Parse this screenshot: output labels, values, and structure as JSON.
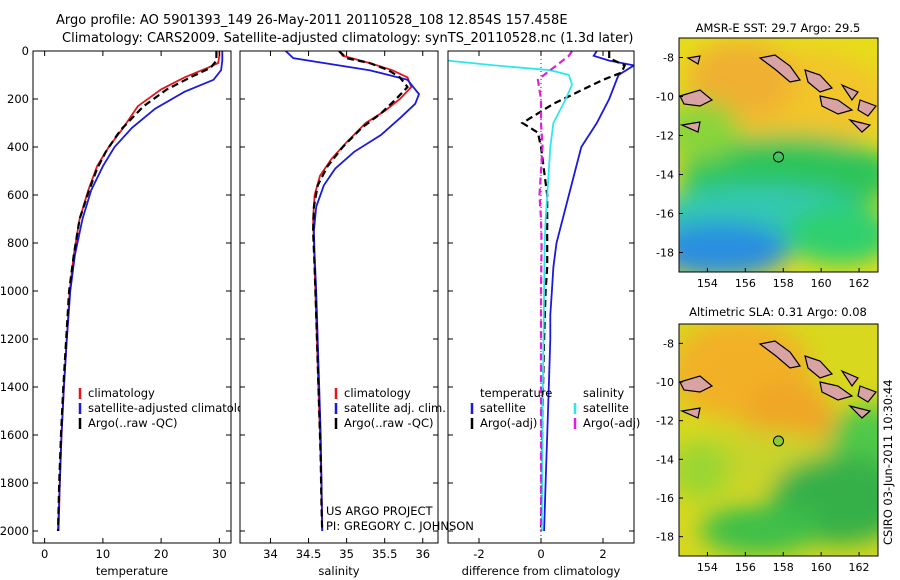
{
  "header": {
    "line1": "Argo profile: AO 5901393_149 26-May-2011 20110528_108 12.854S 157.458E",
    "line2": "Climatology: CARS2009. Satellite-adjusted climatology: synTS_20110528.nc (1.3d later)"
  },
  "side_stamp": "CSIRO 03-Jun-2011 10:30:44",
  "credits": {
    "line1": "US ARGO PROJECT",
    "line2": "PI: GREGORY C. JOHNSON"
  },
  "colors": {
    "climatology": "#e8141c",
    "satellite": "#1a1adc",
    "argo": "#000000",
    "sat_diff_sal": "#2ee8e8",
    "argo_diff_sal": "#e01ee0"
  },
  "chart_data": [
    {
      "type": "line",
      "id": "temperature",
      "xlabel": "temperature",
      "xlim": [
        -2,
        32
      ],
      "ylim": [
        0,
        2050
      ],
      "y_inverted": true,
      "xticks": [
        0,
        10,
        20,
        30
      ],
      "yticks": [
        0,
        200,
        400,
        600,
        800,
        1000,
        1200,
        1400,
        1600,
        1800,
        2000
      ],
      "legend": [
        "climatology",
        "satellite-adjusted climatology",
        "Argo(..raw -QC)"
      ],
      "series": [
        {
          "name": "climatology",
          "style": "solid",
          "color": "#e8141c",
          "points": [
            [
              30,
              0
            ],
            [
              30,
              20
            ],
            [
              29.8,
              50
            ],
            [
              28,
              70
            ],
            [
              24,
              110
            ],
            [
              20,
              160
            ],
            [
              16,
              230
            ],
            [
              13.5,
              320
            ],
            [
              11,
              400
            ],
            [
              9,
              480
            ],
            [
              7.5,
              580
            ],
            [
              6,
              700
            ],
            [
              5,
              850
            ],
            [
              4.3,
              1000
            ],
            [
              3.8,
              1200
            ],
            [
              3.3,
              1400
            ],
            [
              2.9,
              1600
            ],
            [
              2.6,
              1800
            ],
            [
              2.4,
              2000
            ]
          ]
        },
        {
          "name": "satellite-adjusted climatology",
          "style": "solid",
          "color": "#1a1adc",
          "points": [
            [
              30.5,
              0
            ],
            [
              30.5,
              40
            ],
            [
              30.3,
              80
            ],
            [
              29,
              120
            ],
            [
              24,
              170
            ],
            [
              19,
              240
            ],
            [
              15,
              320
            ],
            [
              12,
              400
            ],
            [
              10,
              480
            ],
            [
              8,
              580
            ],
            [
              6.5,
              700
            ],
            [
              5.2,
              850
            ],
            [
              4.4,
              1000
            ],
            [
              3.8,
              1200
            ],
            [
              3.3,
              1400
            ],
            [
              2.9,
              1600
            ],
            [
              2.6,
              1800
            ],
            [
              2.3,
              2000
            ]
          ]
        },
        {
          "name": "Argo(..raw -QC)",
          "style": "dashed",
          "color": "#000000",
          "points": [
            [
              29.5,
              0
            ],
            [
              29.5,
              40
            ],
            [
              28.5,
              70
            ],
            [
              25,
              110
            ],
            [
              21,
              160
            ],
            [
              17,
              230
            ],
            [
              13,
              330
            ],
            [
              10.5,
              420
            ],
            [
              9,
              490
            ],
            [
              7.5,
              590
            ],
            [
              6,
              700
            ],
            [
              5,
              850
            ],
            [
              4.2,
              1000
            ],
            [
              3.7,
              1200
            ],
            [
              3.2,
              1400
            ],
            [
              2.8,
              1600
            ],
            [
              2.5,
              1800
            ],
            [
              2.3,
              2000
            ]
          ]
        }
      ]
    },
    {
      "type": "line",
      "id": "salinity",
      "xlabel": "salinity",
      "xlim": [
        33.6,
        36.2
      ],
      "ylim": [
        0,
        2050
      ],
      "y_inverted": true,
      "xticks": [
        34,
        34.5,
        35,
        35.5,
        36
      ],
      "legend": [
        "climatology",
        "satellite adj. clim.",
        "Argo(..raw -QC)"
      ],
      "series": [
        {
          "name": "climatology",
          "style": "solid",
          "color": "#e8141c",
          "points": [
            [
              34.9,
              0
            ],
            [
              34.95,
              20
            ],
            [
              35.3,
              50
            ],
            [
              35.6,
              80
            ],
            [
              35.8,
              110
            ],
            [
              35.85,
              150
            ],
            [
              35.7,
              200
            ],
            [
              35.5,
              250
            ],
            [
              35.25,
              300
            ],
            [
              35.0,
              380
            ],
            [
              34.8,
              450
            ],
            [
              34.65,
              520
            ],
            [
              34.58,
              600
            ],
            [
              34.56,
              700
            ],
            [
              34.57,
              800
            ],
            [
              34.59,
              1000
            ],
            [
              34.61,
              1200
            ],
            [
              34.63,
              1400
            ],
            [
              34.65,
              1600
            ],
            [
              34.67,
              1800
            ],
            [
              34.68,
              2000
            ]
          ]
        },
        {
          "name": "satellite adj. clim.",
          "style": "solid",
          "color": "#1a1adc",
          "points": [
            [
              34.2,
              0
            ],
            [
              34.3,
              30
            ],
            [
              34.7,
              50
            ],
            [
              35.3,
              80
            ],
            [
              35.8,
              120
            ],
            [
              35.95,
              180
            ],
            [
              35.9,
              220
            ],
            [
              35.7,
              280
            ],
            [
              35.45,
              350
            ],
            [
              35.1,
              420
            ],
            [
              34.85,
              490
            ],
            [
              34.7,
              560
            ],
            [
              34.6,
              650
            ],
            [
              34.57,
              750
            ],
            [
              34.58,
              850
            ],
            [
              34.6,
              1000
            ],
            [
              34.62,
              1200
            ],
            [
              34.64,
              1400
            ],
            [
              34.66,
              1600
            ],
            [
              34.67,
              1800
            ],
            [
              34.68,
              2000
            ]
          ]
        },
        {
          "name": "Argo(..raw -QC)",
          "style": "dashed",
          "color": "#000000",
          "points": [
            [
              34.9,
              0
            ],
            [
              35.0,
              30
            ],
            [
              35.3,
              50
            ],
            [
              35.55,
              80
            ],
            [
              35.7,
              110
            ],
            [
              35.8,
              150
            ],
            [
              35.65,
              200
            ],
            [
              35.45,
              260
            ],
            [
              35.2,
              320
            ],
            [
              34.95,
              400
            ],
            [
              34.75,
              480
            ],
            [
              34.62,
              560
            ],
            [
              34.57,
              650
            ],
            [
              34.56,
              750
            ],
            [
              34.58,
              900
            ],
            [
              34.6,
              1100
            ],
            [
              34.62,
              1300
            ],
            [
              34.64,
              1500
            ],
            [
              34.66,
              1700
            ],
            [
              34.67,
              1900
            ],
            [
              34.68,
              2000
            ]
          ]
        }
      ]
    },
    {
      "type": "line",
      "id": "difference",
      "xlabel": "difference from climatology",
      "xlim": [
        -3,
        3
      ],
      "ylim": [
        0,
        2050
      ],
      "y_inverted": true,
      "xticks": [
        -2,
        0,
        2
      ],
      "legend_titles": [
        "temperature",
        "salinity"
      ],
      "legend": [
        "satellite",
        "Argo(-adj)",
        "satellite",
        "Argo(-adj)"
      ],
      "series": [
        {
          "name": "temperature satellite",
          "style": "solid",
          "color": "#1a1adc",
          "points": [
            [
              1.8,
              0
            ],
            [
              1.7,
              20
            ],
            [
              2.2,
              40
            ],
            [
              3,
              60
            ],
            [
              2.5,
              100
            ],
            [
              2.2,
              200
            ],
            [
              1.8,
              300
            ],
            [
              1.3,
              400
            ],
            [
              1.1,
              500
            ],
            [
              0.9,
              600
            ],
            [
              0.7,
              700
            ],
            [
              0.5,
              800
            ],
            [
              0.4,
              900
            ],
            [
              0.35,
              1000
            ],
            [
              0.3,
              1100
            ],
            [
              0.3,
              1200
            ],
            [
              0.25,
              1400
            ],
            [
              0.2,
              1600
            ],
            [
              0.15,
              1800
            ],
            [
              0.1,
              2000
            ]
          ]
        },
        {
          "name": "temperature Argo(-adj)",
          "style": "dashed",
          "color": "#000000",
          "points": [
            [
              2.2,
              0
            ],
            [
              2.2,
              30
            ],
            [
              2.7,
              60
            ],
            [
              2.6,
              90
            ],
            [
              2.0,
              120
            ],
            [
              1.2,
              170
            ],
            [
              0.4,
              220
            ],
            [
              -0.6,
              300
            ],
            [
              -0.1,
              340
            ],
            [
              0,
              400
            ],
            [
              0.1,
              500
            ],
            [
              0.2,
              600
            ],
            [
              0.2,
              700
            ],
            [
              0.2,
              800
            ],
            [
              0.2,
              900
            ],
            [
              0.15,
              1000
            ],
            [
              0.1,
              1200
            ],
            [
              0.05,
              1500
            ],
            [
              0,
              2000
            ]
          ]
        },
        {
          "name": "salinity satellite",
          "style": "solid",
          "color": "#2ee8e8",
          "points": [
            [
              -3,
              40
            ],
            [
              -1.5,
              60
            ],
            [
              0.3,
              80
            ],
            [
              0.9,
              100
            ],
            [
              1.0,
              140
            ],
            [
              0.8,
              200
            ],
            [
              0.4,
              300
            ],
            [
              0.3,
              400
            ],
            [
              0.25,
              500
            ],
            [
              0.2,
              600
            ],
            [
              0.15,
              700
            ],
            [
              0.12,
              800
            ],
            [
              0.1,
              1000
            ],
            [
              0.08,
              1200
            ],
            [
              0.05,
              1500
            ],
            [
              0.03,
              2000
            ]
          ]
        },
        {
          "name": "salinity Argo(-adj)",
          "style": "dashed",
          "color": "#e01ee0",
          "points": [
            [
              1.0,
              0
            ],
            [
              0.9,
              20
            ],
            [
              0.6,
              50
            ],
            [
              0.3,
              80
            ],
            [
              -0.1,
              120
            ],
            [
              0,
              200
            ],
            [
              0,
              300
            ],
            [
              0.05,
              400
            ],
            [
              0,
              500
            ],
            [
              -0.05,
              600
            ],
            [
              0,
              700
            ],
            [
              0.02,
              800
            ],
            [
              0,
              1000
            ],
            [
              0,
              2000
            ]
          ]
        }
      ]
    },
    {
      "type": "heatmap",
      "id": "sst_map",
      "title": "AMSR-E SST: 29.7 Argo: 29.5",
      "xticks": [
        "154",
        "156",
        "158",
        "160",
        "162"
      ],
      "yticks": [
        "-8",
        "-10",
        "-12",
        "-14",
        "-16",
        "-18"
      ],
      "xlim": [
        152.5,
        163
      ],
      "ylim": [
        -19,
        -7
      ],
      "marker": {
        "lon": 157.458,
        "lat": -12.854
      }
    },
    {
      "type": "heatmap",
      "id": "sla_map",
      "title": "Altimetric SLA: 0.31 Argo: 0.08",
      "xticks": [
        "154",
        "156",
        "158",
        "160",
        "162"
      ],
      "yticks": [
        "-8",
        "-10",
        "-12",
        "-14",
        "-16",
        "-18"
      ],
      "xlim": [
        152.5,
        163
      ],
      "ylim": [
        -19,
        -7
      ],
      "marker": {
        "lon": 157.458,
        "lat": -12.854
      }
    }
  ]
}
